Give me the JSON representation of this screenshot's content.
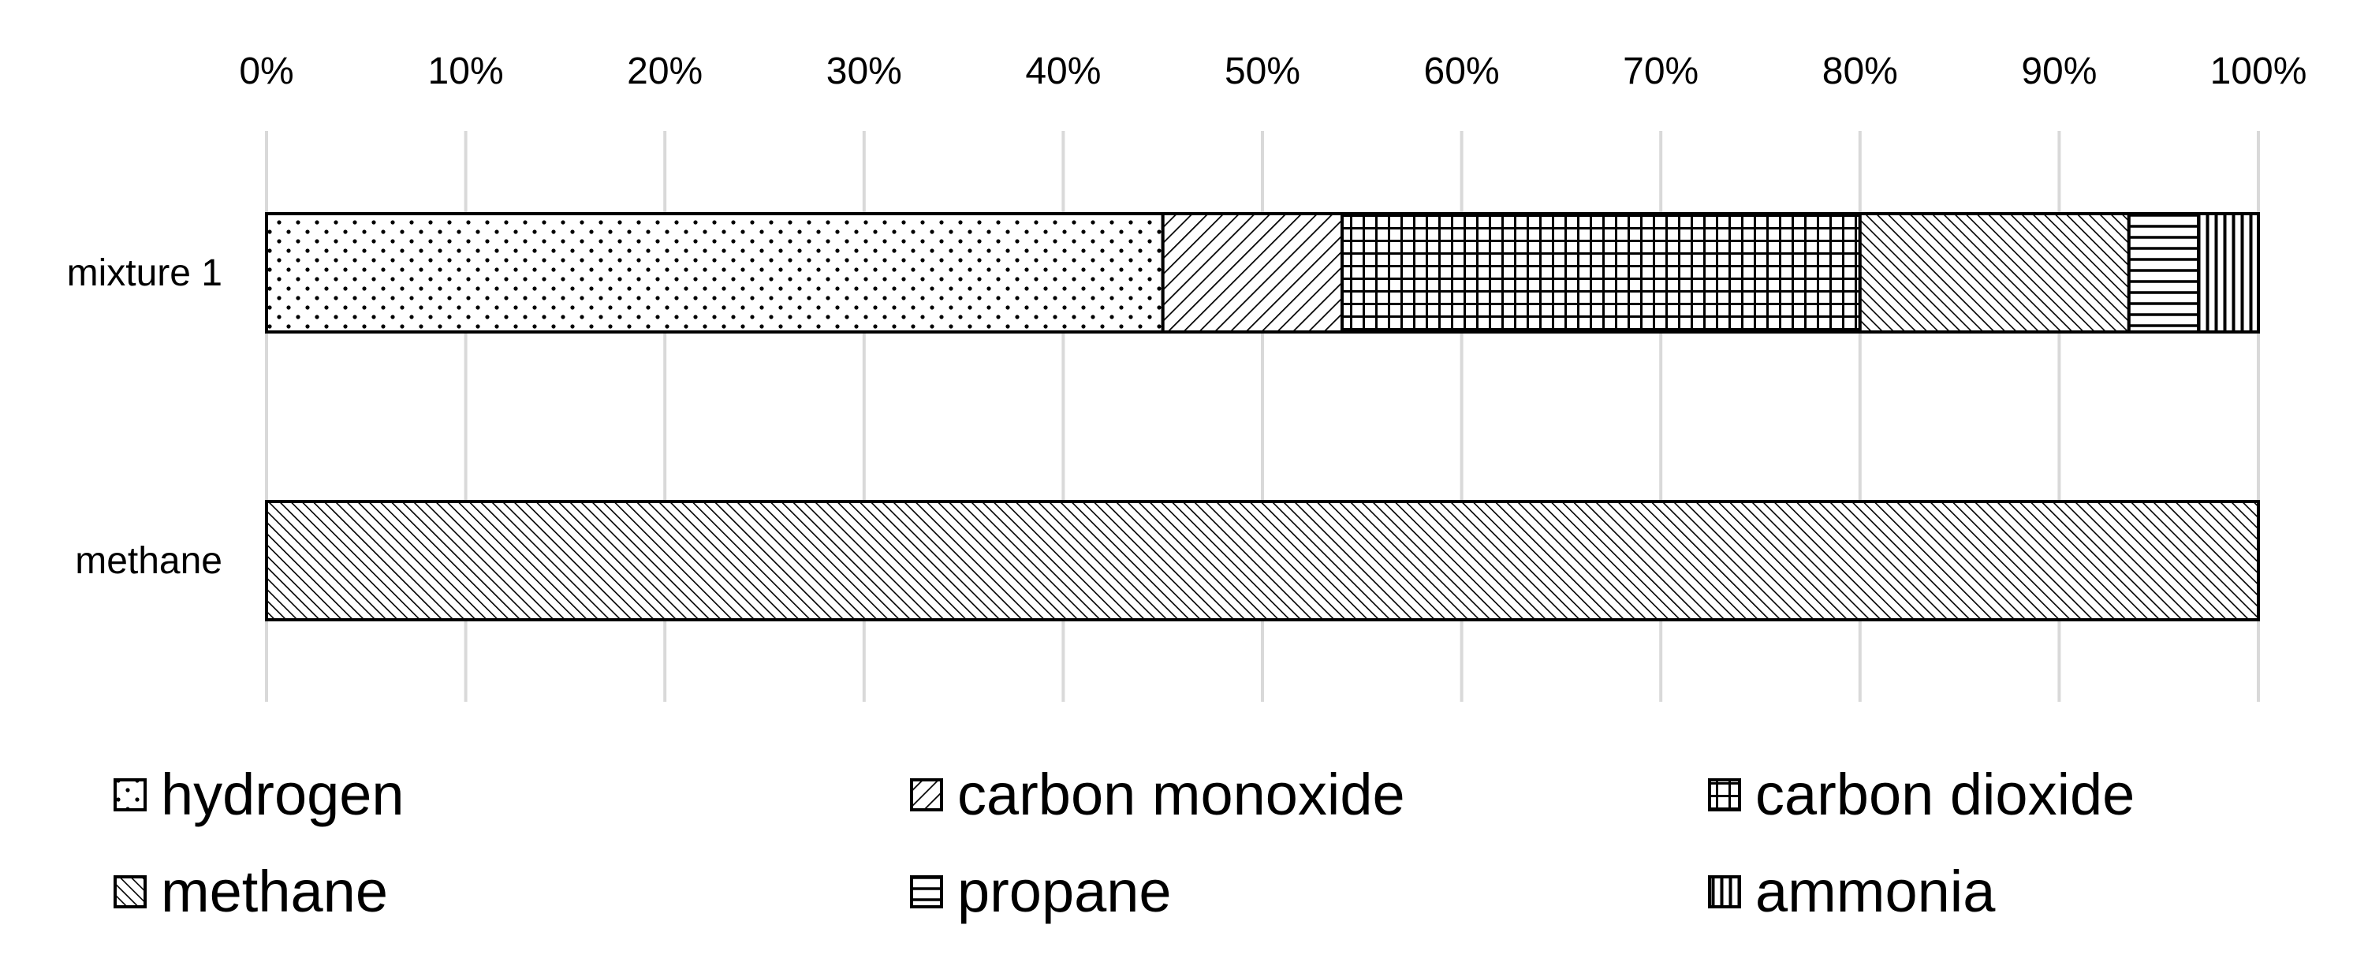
{
  "chart_data": {
    "type": "bar",
    "orientation": "horizontal",
    "stacked": "percent",
    "categories": [
      "mixture 1",
      "methane"
    ],
    "series": [
      {
        "name": "hydrogen",
        "values": [
          45,
          0
        ],
        "pattern": "dots"
      },
      {
        "name": "carbon monoxide",
        "values": [
          9,
          0
        ],
        "pattern": "diagonal-back"
      },
      {
        "name": "carbon dioxide",
        "values": [
          26,
          0
        ],
        "pattern": "grid"
      },
      {
        "name": "methane",
        "values": [
          13.5,
          100
        ],
        "pattern": "diagonal-forward"
      },
      {
        "name": "propane",
        "values": [
          3.5,
          0
        ],
        "pattern": "horizontal"
      },
      {
        "name": "ammonia",
        "values": [
          3,
          0
        ],
        "pattern": "vertical"
      }
    ],
    "xaxis": {
      "position": "top",
      "ticks": [
        "0%",
        "10%",
        "20%",
        "30%",
        "40%",
        "50%",
        "60%",
        "70%",
        "80%",
        "90%",
        "100%"
      ],
      "range": [
        0,
        100
      ]
    },
    "grid": true,
    "legend": {
      "position": "bottom",
      "columns": 3
    },
    "colors": {
      "fill": "#ffffff",
      "stroke": "#000000",
      "grid": "#d9d9d9"
    }
  }
}
